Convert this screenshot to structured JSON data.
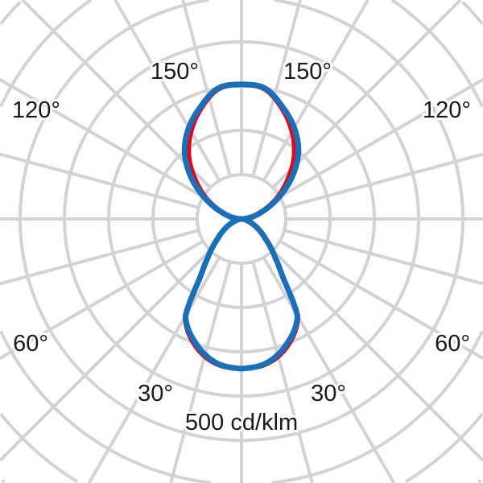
{
  "chart_data": {
    "type": "polar-line",
    "unit_label": "500 cd/klm",
    "angle_labels": {
      "top_left": "150°",
      "top_right": "150°",
      "upper_left": "120°",
      "upper_right": "120°",
      "lower_left": "60°",
      "lower_right": "60°",
      "bottom_left": "30°",
      "bottom_right": "30°"
    },
    "angular_grid_step_deg": 15,
    "radial_grid_step": 100,
    "grid": true,
    "symmetric": true,
    "series": [
      {
        "color": "#e30613",
        "angles": [
          0,
          10,
          20,
          30,
          35,
          41,
          50,
          60,
          70,
          80,
          90,
          100,
          110,
          120,
          130,
          140,
          150,
          160,
          170,
          180
        ],
        "values": [
          338,
          332,
          305,
          255,
          168,
          116,
          72,
          42,
          20,
          8,
          0,
          20,
          48,
          90,
          135,
          185,
          228,
          266,
          298,
          304
        ]
      },
      {
        "color": "#1a6fb8",
        "angles": [
          0,
          10,
          20,
          30,
          35,
          41,
          50,
          60,
          70,
          80,
          90,
          100,
          110,
          120,
          130,
          140,
          150,
          160,
          170,
          180
        ],
        "values": [
          338,
          330,
          300,
          253,
          166,
          116,
          72,
          42,
          20,
          8,
          0,
          22,
          52,
          97,
          150,
          200,
          238,
          270,
          300,
          304
        ]
      }
    ]
  }
}
